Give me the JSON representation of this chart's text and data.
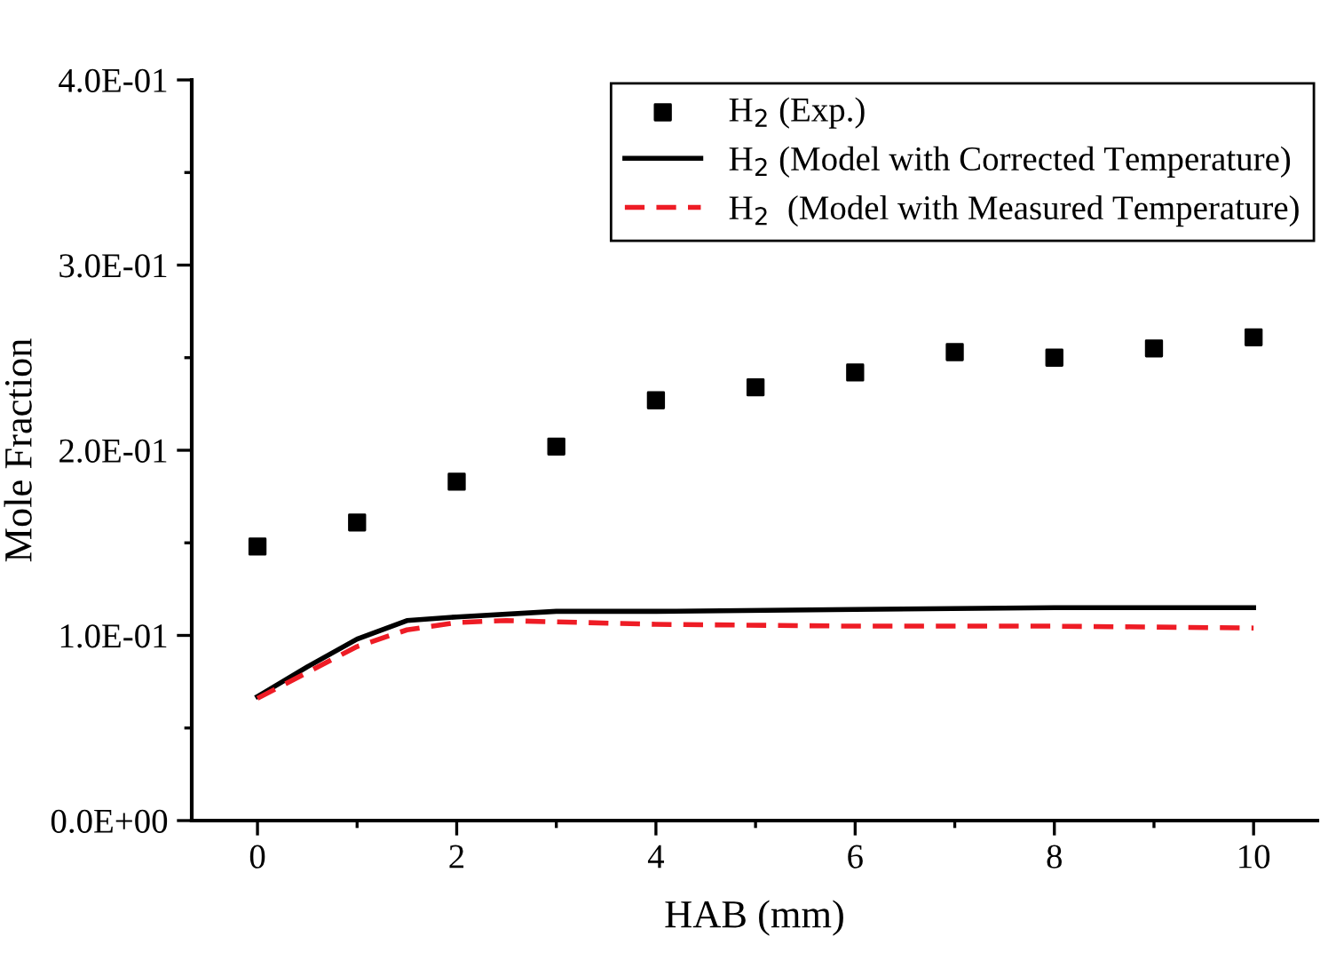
{
  "chart_data": {
    "type": "line",
    "xlabel": "HAB (mm)",
    "ylabel": "Mole Fraction",
    "xlim": [
      -0.66,
      10.64
    ],
    "xticks": [
      0,
      2,
      4,
      6,
      8,
      10
    ],
    "ylim": [
      0,
      0.4
    ],
    "yticks": [
      {
        "value": 0,
        "label": "0.0E+00"
      },
      {
        "value": 0.1,
        "label": "1.0E-01"
      },
      {
        "value": 0.2,
        "label": "2.0E-01"
      },
      {
        "value": 0.3,
        "label": "3.0E-01"
      },
      {
        "value": 0.4,
        "label": "4.0E-01"
      }
    ],
    "grid": false,
    "legend": "top right",
    "series": [
      {
        "name": "H$_{2}$ (Exp.)",
        "type": "scatter",
        "marker": "square",
        "color": "#000000",
        "x": [
          0,
          1,
          2,
          3,
          4,
          5,
          6,
          7,
          8,
          9,
          10
        ],
        "values": [
          0.148,
          0.161,
          0.183,
          0.202,
          0.227,
          0.234,
          0.242,
          0.253,
          0.25,
          0.255,
          0.261
        ]
      },
      {
        "name": "H$_{2}$ (Model with Corrected Temperature)",
        "line_style": "solid",
        "color": "#000000",
        "x": [
          0,
          0.5,
          1,
          1.5,
          2,
          3,
          4,
          6,
          8,
          10
        ],
        "values": [
          0.067,
          0.083,
          0.098,
          0.108,
          0.11,
          0.113,
          0.113,
          0.114,
          0.115,
          0.115
        ]
      },
      {
        "name": "H$_{2}$  (Model with Measured Temperature)",
        "line_style": "dashed",
        "color": "#ee1c25",
        "x": [
          0,
          0.5,
          1,
          1.5,
          2,
          2.5,
          4,
          6,
          8,
          10
        ],
        "values": [
          0.066,
          0.08,
          0.094,
          0.103,
          0.107,
          0.108,
          0.106,
          0.105,
          0.105,
          0.104
        ]
      }
    ]
  }
}
